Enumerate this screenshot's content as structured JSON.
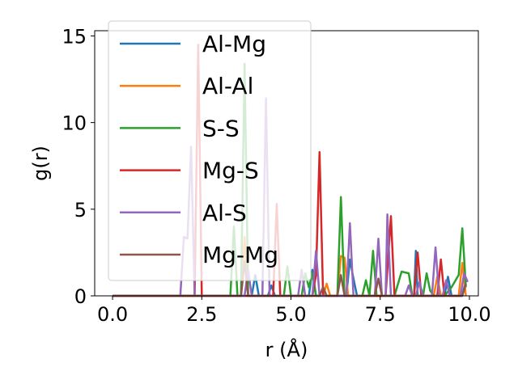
{
  "chart_data": {
    "type": "line",
    "title": "",
    "xlabel": "r (Å)",
    "ylabel": "g(r)",
    "xlim": [
      -0.5,
      10.25
    ],
    "ylim": [
      0,
      15.3
    ],
    "xticks": [
      "0.0",
      "2.5",
      "5.0",
      "7.5",
      "10.0"
    ],
    "xtick_values": [
      0,
      2.5,
      5,
      7.5,
      10
    ],
    "yticks": [
      "0",
      "5",
      "10",
      "15"
    ],
    "ytick_values": [
      0,
      5,
      10,
      15
    ],
    "grid": false,
    "legend_position": "upper-left",
    "series": [
      {
        "name": "Al-Mg",
        "color": "#1f77b4",
        "points": [
          [
            0,
            0
          ],
          [
            3.9,
            0
          ],
          [
            4.0,
            1.2
          ],
          [
            4.1,
            0
          ],
          [
            4.35,
            0
          ],
          [
            4.45,
            0.6
          ],
          [
            4.55,
            0
          ],
          [
            5.5,
            0
          ],
          [
            5.6,
            1.5
          ],
          [
            5.7,
            0
          ],
          [
            6.55,
            0
          ],
          [
            6.65,
            2.1
          ],
          [
            6.75,
            1.0
          ],
          [
            6.85,
            0
          ],
          [
            8.45,
            0
          ],
          [
            8.5,
            2.6
          ],
          [
            8.55,
            0
          ],
          [
            9.3,
            0
          ],
          [
            9.4,
            1.1
          ],
          [
            9.5,
            0
          ],
          [
            9.8,
            0
          ],
          [
            9.9,
            0.9
          ]
        ]
      },
      {
        "name": "Al-Al",
        "color": "#ff7f0e",
        "points": [
          [
            0,
            0
          ],
          [
            3.6,
            0
          ],
          [
            3.7,
            3.4
          ],
          [
            3.8,
            0
          ],
          [
            5.9,
            0
          ],
          [
            6.0,
            0.7
          ],
          [
            6.1,
            0
          ],
          [
            6.3,
            0
          ],
          [
            6.4,
            2.3
          ],
          [
            6.5,
            2.2
          ],
          [
            6.6,
            0
          ],
          [
            9.0,
            0
          ],
          [
            9.1,
            1.1
          ],
          [
            9.2,
            0
          ],
          [
            9.7,
            0
          ],
          [
            9.8,
            1.9
          ],
          [
            9.9,
            0
          ]
        ]
      },
      {
        "name": "S-S",
        "color": "#2ca02c",
        "points": [
          [
            0,
            0
          ],
          [
            3.3,
            0
          ],
          [
            3.4,
            4.0
          ],
          [
            3.5,
            0
          ],
          [
            3.6,
            0
          ],
          [
            3.7,
            13.4
          ],
          [
            3.8,
            0
          ],
          [
            4.8,
            0
          ],
          [
            4.9,
            1.7
          ],
          [
            5.0,
            0
          ],
          [
            5.3,
            0
          ],
          [
            5.4,
            1.3
          ],
          [
            5.5,
            0.5
          ],
          [
            5.6,
            1.3
          ],
          [
            5.7,
            0
          ],
          [
            6.3,
            0
          ],
          [
            6.4,
            5.7
          ],
          [
            6.5,
            0
          ],
          [
            7.0,
            0
          ],
          [
            7.1,
            0.9
          ],
          [
            7.2,
            0
          ],
          [
            7.3,
            2.6
          ],
          [
            7.4,
            0
          ],
          [
            7.9,
            0
          ],
          [
            8.1,
            1.4
          ],
          [
            8.3,
            1.3
          ],
          [
            8.4,
            0
          ],
          [
            8.7,
            0
          ],
          [
            8.8,
            1.3
          ],
          [
            8.9,
            0.3
          ],
          [
            9.0,
            0
          ],
          [
            9.3,
            0
          ],
          [
            9.5,
            0.5
          ],
          [
            9.7,
            1.2
          ],
          [
            9.8,
            3.9
          ],
          [
            9.9,
            0.5
          ]
        ]
      },
      {
        "name": "Mg-S",
        "color": "#d62728",
        "points": [
          [
            0,
            0
          ],
          [
            2.3,
            0
          ],
          [
            2.4,
            14.5
          ],
          [
            2.5,
            0
          ],
          [
            4.5,
            0
          ],
          [
            4.6,
            5.3
          ],
          [
            4.7,
            0
          ],
          [
            5.6,
            0
          ],
          [
            5.7,
            1.2
          ],
          [
            5.8,
            8.3
          ],
          [
            5.9,
            0
          ],
          [
            7.65,
            0
          ],
          [
            7.8,
            4.6
          ],
          [
            7.9,
            0
          ],
          [
            8.45,
            0
          ],
          [
            8.55,
            2.5
          ],
          [
            8.65,
            0
          ],
          [
            9.1,
            0
          ],
          [
            9.2,
            2.1
          ],
          [
            9.3,
            0
          ]
        ]
      },
      {
        "name": "Al-S",
        "color": "#9467bd",
        "points": [
          [
            0,
            0
          ],
          [
            1.9,
            0
          ],
          [
            2.0,
            3.4
          ],
          [
            2.1,
            3.3
          ],
          [
            2.2,
            8.6
          ],
          [
            2.3,
            0
          ],
          [
            3.7,
            0
          ],
          [
            3.8,
            1.5
          ],
          [
            3.9,
            0
          ],
          [
            4.2,
            0
          ],
          [
            4.3,
            11.4
          ],
          [
            4.4,
            0
          ],
          [
            5.2,
            0
          ],
          [
            5.3,
            1.5
          ],
          [
            5.4,
            0
          ],
          [
            5.6,
            0
          ],
          [
            5.7,
            2.6
          ],
          [
            5.8,
            0
          ],
          [
            6.55,
            0
          ],
          [
            6.65,
            4.2
          ],
          [
            6.75,
            0
          ],
          [
            7.35,
            0
          ],
          [
            7.45,
            3.3
          ],
          [
            7.55,
            0
          ],
          [
            7.65,
            0
          ],
          [
            7.7,
            4.7
          ],
          [
            7.8,
            0
          ],
          [
            8.2,
            0
          ],
          [
            8.3,
            0.6
          ],
          [
            8.4,
            0
          ],
          [
            8.5,
            0
          ],
          [
            8.6,
            0.8
          ],
          [
            8.7,
            0
          ],
          [
            8.95,
            0
          ],
          [
            9.05,
            2.8
          ],
          [
            9.15,
            0
          ],
          [
            9.25,
            0
          ],
          [
            9.35,
            0.9
          ],
          [
            9.45,
            0
          ],
          [
            9.75,
            0
          ],
          [
            9.85,
            1.3
          ],
          [
            9.95,
            0.8
          ]
        ]
      },
      {
        "name": "Mg-Mg",
        "color": "#8c564b",
        "points": [
          [
            0,
            0
          ],
          [
            3.6,
            0
          ],
          [
            3.7,
            2.0
          ],
          [
            3.8,
            0
          ],
          [
            5.8,
            0
          ],
          [
            5.9,
            0.5
          ],
          [
            6.0,
            0
          ],
          [
            6.3,
            0
          ],
          [
            6.4,
            1.2
          ],
          [
            6.5,
            0
          ],
          [
            7.35,
            0
          ],
          [
            7.45,
            1.0
          ],
          [
            7.55,
            0
          ],
          [
            9.8,
            0
          ],
          [
            9.9,
            0.7
          ]
        ]
      }
    ]
  }
}
